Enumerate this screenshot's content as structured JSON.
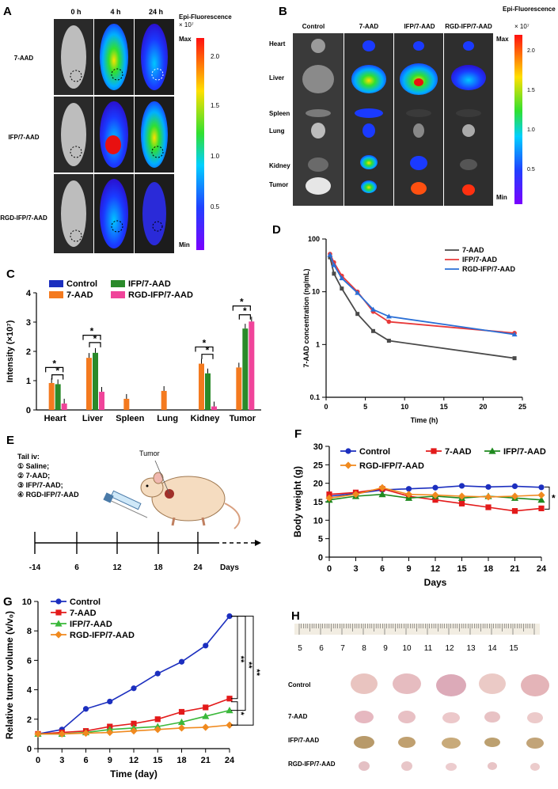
{
  "panels": {
    "A": {
      "label": "A",
      "col_headers": [
        "0 h",
        "4 h",
        "24 h"
      ],
      "row_labels": [
        "7-AAD",
        "IFP/7-AAD",
        "RGD-IFP/7-AAD"
      ],
      "scale_title": "Epi-Fluorescence",
      "scale_unit": "× 10⁷",
      "scale_max": "Max",
      "scale_min": "Min",
      "scale_ticks": [
        "2.0",
        "1.5",
        "1.0",
        "0.5"
      ]
    },
    "B": {
      "label": "B",
      "col_headers": [
        "Control",
        "7-AAD",
        "IFP/7-AAD",
        "RGD-IFP/7-AAD"
      ],
      "row_labels": [
        "Heart",
        "Liver",
        "Spleen",
        "Lung",
        "Kidney",
        "Tumor"
      ],
      "scale_title": "Epi-Fluorescence",
      "scale_unit": "× 10⁷",
      "scale_max": "Max",
      "scale_min": "Min",
      "scale_ticks": [
        "2.0",
        "1.5",
        "1.0",
        "0.5"
      ]
    },
    "C": {
      "label": "C",
      "significance": "*"
    },
    "D": {
      "label": "D"
    },
    "E": {
      "label": "E",
      "title": "Tail iv:",
      "items": [
        "① Saline;",
        "② 7-AAD;",
        "③ IFP/7-AAD;",
        "④ RGD-IFP/7-AAD"
      ],
      "tumor_label": "Tumor",
      "timeline": [
        "-14",
        "6",
        "12",
        "18",
        "24"
      ],
      "timeline_unit": "Days"
    },
    "F": {
      "label": "F",
      "significance": "*"
    },
    "G": {
      "label": "G",
      "sig_1": "**",
      "sig_2": "**",
      "sig_3": "**",
      "sig_4": "*"
    },
    "H": {
      "label": "H",
      "ruler_numbers": [
        "5",
        "6",
        "7",
        "8",
        "9",
        "10",
        "11",
        "12",
        "13",
        "14",
        "15"
      ],
      "row_labels": [
        "Control",
        "7-AAD",
        "IFP/7-AAD",
        "RGD-IFP/7-AAD"
      ]
    }
  },
  "chart_data": [
    {
      "id": "C",
      "type": "bar",
      "title": "",
      "xlabel": "",
      "ylabel": "Intensity (×10⁷)",
      "ylim": [
        0,
        4
      ],
      "yticks": [
        "0",
        "1",
        "2",
        "3",
        "4"
      ],
      "categories": [
        "Heart",
        "Liver",
        "Spleen",
        "Lung",
        "Kidney",
        "Tumor"
      ],
      "legend": [
        "Control",
        "7-AAD",
        "IFP/7-AAD",
        "RGD-IFP/7-AAD"
      ],
      "series": [
        {
          "name": "Control",
          "color": "#1c2fbf",
          "values": [
            0,
            0,
            0,
            0,
            0,
            0
          ]
        },
        {
          "name": "7-AAD",
          "color": "#f47a1f",
          "values": [
            0.92,
            1.78,
            0.38,
            0.65,
            1.58,
            1.45
          ]
        },
        {
          "name": "IFP/7-AAD",
          "color": "#2a8a2a",
          "values": [
            0.88,
            1.95,
            0,
            0,
            1.25,
            2.78
          ]
        },
        {
          "name": "RGD-IFP/7-AAD",
          "color": "#f0449a",
          "values": [
            0.22,
            0.62,
            0,
            0,
            0.12,
            3.02
          ]
        }
      ]
    },
    {
      "id": "D",
      "type": "line",
      "title": "",
      "xlabel": "Time (h)",
      "ylabel": "7-AAD concentration (ng/mL)",
      "xlim": [
        0,
        25
      ],
      "xticks": [
        "0",
        "5",
        "10",
        "15",
        "20",
        "25"
      ],
      "yscale": "log",
      "ylim": [
        0.1,
        100
      ],
      "yticks": [
        "0.1",
        "1",
        "10",
        "100"
      ],
      "x": [
        0.5,
        1,
        2,
        4,
        6,
        8,
        24
      ],
      "series": [
        {
          "name": "7-AAD",
          "color": "#4a4a4a",
          "values": [
            45,
            22,
            11.5,
            3.8,
            1.8,
            1.18,
            0.55
          ]
        },
        {
          "name": "IFP/7-AAD",
          "color": "#e83a3a",
          "values": [
            52,
            36,
            20,
            10,
            4.2,
            2.7,
            1.65
          ]
        },
        {
          "name": "RGD-IFP/7-AAD",
          "color": "#2a6fd6",
          "values": [
            50,
            32,
            18,
            9.5,
            4.6,
            3.4,
            1.55
          ]
        }
      ]
    },
    {
      "id": "F",
      "type": "line",
      "title": "",
      "xlabel": "Days",
      "ylabel": "Body weight (g)",
      "xlim": [
        0,
        24
      ],
      "xticks": [
        "0",
        "3",
        "6",
        "9",
        "12",
        "15",
        "18",
        "21",
        "24"
      ],
      "ylim": [
        0,
        30
      ],
      "yticks": [
        "0",
        "5",
        "10",
        "15",
        "20",
        "25",
        "30"
      ],
      "x": [
        0,
        3,
        6,
        9,
        12,
        15,
        18,
        21,
        24
      ],
      "series": [
        {
          "name": "Control",
          "color": "#1c2fbf",
          "values": [
            16.5,
            17.2,
            18.2,
            18.5,
            18.8,
            19.3,
            19.0,
            19.2,
            18.9
          ]
        },
        {
          "name": "7-AAD",
          "color": "#e31a1a",
          "values": [
            17.0,
            17.5,
            18.5,
            16.5,
            15.5,
            14.5,
            13.5,
            12.5,
            13.2
          ]
        },
        {
          "name": "IFP/7-AAD",
          "color": "#1f8a1f",
          "values": [
            15.5,
            16.5,
            17.0,
            16.0,
            16.5,
            16.0,
            16.5,
            16.0,
            15.5
          ]
        },
        {
          "name": "RGD-IFP/7-AAD",
          "color": "#f08a1f",
          "values": [
            16.0,
            17.0,
            18.8,
            17.0,
            16.8,
            16.5,
            16.3,
            16.5,
            16.8
          ]
        }
      ]
    },
    {
      "id": "G",
      "type": "line",
      "title": "",
      "xlabel": "Time (day)",
      "ylabel": "Relative tumor volume (v/v₀)",
      "xlim": [
        0,
        24
      ],
      "xticks": [
        "0",
        "3",
        "6",
        "9",
        "12",
        "15",
        "18",
        "21",
        "24"
      ],
      "ylim": [
        0,
        10
      ],
      "yticks": [
        "0",
        "2",
        "4",
        "6",
        "8",
        "10"
      ],
      "x": [
        0,
        3,
        6,
        9,
        12,
        15,
        18,
        21,
        24
      ],
      "series": [
        {
          "name": "Control",
          "color": "#1c2fbf",
          "values": [
            1.0,
            1.3,
            2.7,
            3.2,
            4.1,
            5.1,
            5.9,
            7.0,
            9.0
          ]
        },
        {
          "name": "7-AAD",
          "color": "#e31a1a",
          "values": [
            1.0,
            1.1,
            1.2,
            1.5,
            1.7,
            2.0,
            2.5,
            2.8,
            3.4
          ]
        },
        {
          "name": "IFP/7-AAD",
          "color": "#3ab83a",
          "values": [
            1.0,
            1.0,
            1.1,
            1.3,
            1.4,
            1.5,
            1.8,
            2.2,
            2.6
          ]
        },
        {
          "name": "RGD-IFP/7-AAD",
          "color": "#f08a1f",
          "values": [
            1.0,
            1.0,
            1.05,
            1.1,
            1.2,
            1.3,
            1.4,
            1.45,
            1.6
          ]
        }
      ]
    }
  ]
}
